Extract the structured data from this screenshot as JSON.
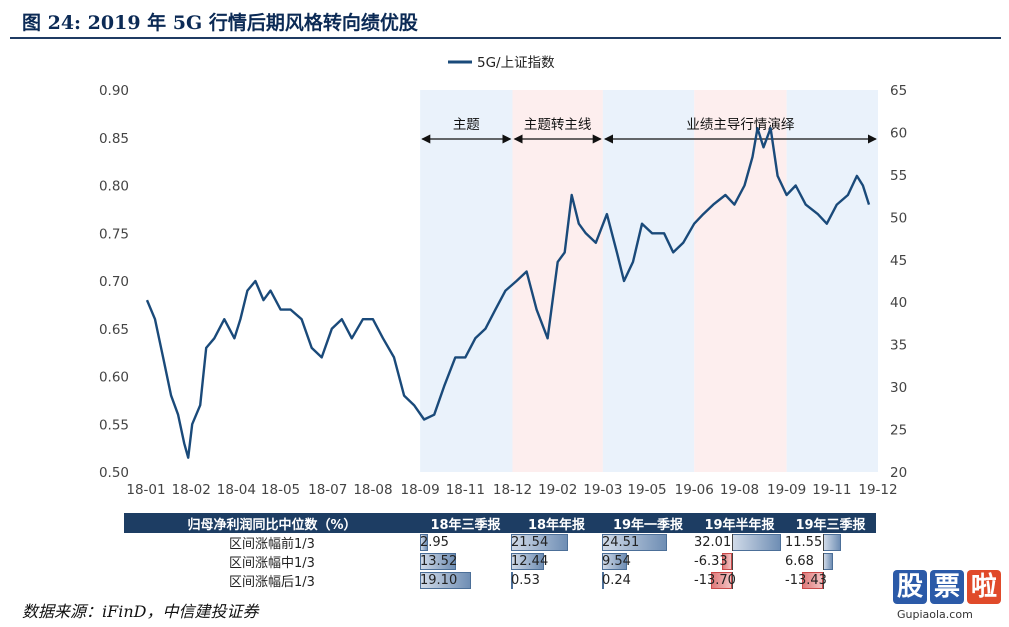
{
  "figure": {
    "title": "图 24: 2019 年 5G 行情后期风格转向绩优股",
    "source": "数据来源：iFinD，中信建投证券"
  },
  "chart_data": {
    "type": "line",
    "legend": [
      "5G/上证指数"
    ],
    "legend_position": "top-center",
    "series": [
      {
        "name": "5G/上证指数",
        "color": "#1a4a7a",
        "axis": "left",
        "x": [
          "2018-01-02",
          "2018-01-10",
          "2018-01-18",
          "2018-01-26",
          "2018-02-02",
          "2018-02-08",
          "2018-02-12",
          "2018-02-16",
          "2018-02-24",
          "2018-03-02",
          "2018-03-10",
          "2018-03-20",
          "2018-03-30",
          "2018-04-05",
          "2018-04-12",
          "2018-04-20",
          "2018-04-28",
          "2018-05-05",
          "2018-05-15",
          "2018-05-25",
          "2018-06-05",
          "2018-06-15",
          "2018-06-25",
          "2018-07-05",
          "2018-07-15",
          "2018-07-25",
          "2018-08-05",
          "2018-08-15",
          "2018-08-25",
          "2018-09-05",
          "2018-09-15",
          "2018-09-25",
          "2018-10-05",
          "2018-10-15",
          "2018-10-25",
          "2018-11-05",
          "2018-11-15",
          "2018-11-25",
          "2018-12-05",
          "2018-12-15",
          "2018-12-25",
          "2019-01-05",
          "2019-01-15",
          "2019-01-25",
          "2019-02-05",
          "2019-02-15",
          "2019-02-22",
          "2019-03-01",
          "2019-03-08",
          "2019-03-15",
          "2019-03-25",
          "2019-04-05",
          "2019-04-15",
          "2019-04-22",
          "2019-05-01",
          "2019-05-10",
          "2019-05-20",
          "2019-06-01",
          "2019-06-10",
          "2019-06-20",
          "2019-07-01",
          "2019-07-10",
          "2019-07-20",
          "2019-08-01",
          "2019-08-10",
          "2019-08-20",
          "2019-08-28",
          "2019-09-02",
          "2019-09-08",
          "2019-09-15",
          "2019-09-22",
          "2019-10-01",
          "2019-10-10",
          "2019-10-20",
          "2019-11-01",
          "2019-11-10",
          "2019-11-20",
          "2019-12-01",
          "2019-12-10",
          "2019-12-16",
          "2019-12-22"
        ],
        "y": [
          0.68,
          0.66,
          0.62,
          0.58,
          0.56,
          0.53,
          0.515,
          0.55,
          0.57,
          0.63,
          0.64,
          0.66,
          0.64,
          0.66,
          0.69,
          0.7,
          0.68,
          0.69,
          0.67,
          0.67,
          0.66,
          0.63,
          0.62,
          0.65,
          0.66,
          0.64,
          0.66,
          0.66,
          0.64,
          0.62,
          0.58,
          0.57,
          0.555,
          0.56,
          0.59,
          0.62,
          0.62,
          0.64,
          0.65,
          0.67,
          0.69,
          0.7,
          0.71,
          0.67,
          0.64,
          0.72,
          0.73,
          0.79,
          0.76,
          0.75,
          0.74,
          0.77,
          0.73,
          0.7,
          0.72,
          0.76,
          0.75,
          0.75,
          0.73,
          0.74,
          0.76,
          0.77,
          0.78,
          0.79,
          0.78,
          0.8,
          0.83,
          0.86,
          0.84,
          0.86,
          0.81,
          0.79,
          0.8,
          0.78,
          0.77,
          0.76,
          0.78,
          0.79,
          0.81,
          0.8,
          0.78
        ]
      }
    ],
    "x_axis": {
      "ticks": [
        "18-01",
        "18-02",
        "18-04",
        "18-05",
        "18-07",
        "18-08",
        "18-09",
        "18-11",
        "18-12",
        "19-02",
        "19-03",
        "19-05",
        "19-06",
        "19-08",
        "19-09",
        "19-11",
        "19-12"
      ],
      "tick_dates": [
        "2018-01-01",
        "2018-02-15",
        "2018-04-01",
        "2018-05-15",
        "2018-07-01",
        "2018-08-15",
        "2018-10-01",
        "2018-11-15",
        "2019-01-01",
        "2019-02-15",
        "2019-04-01",
        "2019-05-15",
        "2019-07-01",
        "2019-08-15",
        "2019-10-01",
        "2019-11-15",
        "2019-12-31"
      ]
    },
    "y_axis_left": {
      "ylim": [
        0.5,
        0.9
      ],
      "ticks": [
        "0.50",
        "0.55",
        "0.60",
        "0.65",
        "0.70",
        "0.75",
        "0.80",
        "0.85",
        "0.90"
      ]
    },
    "y_axis_right": {
      "ylim": [
        20,
        65
      ],
      "ticks": [
        "20",
        "25",
        "30",
        "35",
        "40",
        "45",
        "50",
        "55",
        "60",
        "65"
      ]
    },
    "bands": [
      {
        "start": "2018-10-01",
        "end": "2019-01-01",
        "color": "#eaf2fb"
      },
      {
        "start": "2019-01-01",
        "end": "2019-04-01",
        "color": "#fdeeee"
      },
      {
        "start": "2019-04-01",
        "end": "2019-07-01",
        "color": "#eaf2fb"
      },
      {
        "start": "2019-07-01",
        "end": "2019-10-01",
        "color": "#fdeeee"
      },
      {
        "start": "2019-10-01",
        "end": "2019-12-31",
        "color": "#eaf2fb"
      }
    ],
    "annotations": [
      {
        "text": "主题",
        "start": "2018-10-01",
        "end": "2019-01-01"
      },
      {
        "text": "主题转主线",
        "start": "2019-01-01",
        "end": "2019-04-01"
      },
      {
        "text": "业绩主导行情演绎",
        "start": "2019-04-01",
        "end": "2019-12-31"
      }
    ],
    "grid": false
  },
  "table": {
    "headers": [
      "归母净利润同比中位数（%）",
      "18年三季报",
      "18年年报",
      "19年一季报",
      "19年半年报",
      "19年三季报"
    ],
    "rows": [
      {
        "label": "区间涨幅前1/3",
        "values": [
          "2.95",
          "21.54",
          "24.51",
          "32.01",
          "11.55"
        ],
        "nums": [
          2.95,
          21.54,
          24.51,
          32.01,
          11.55
        ]
      },
      {
        "label": "区间涨幅中1/3",
        "values": [
          "13.52",
          "12.44",
          "9.54",
          "-6.33",
          "6.68"
        ],
        "nums": [
          13.52,
          12.44,
          9.54,
          -6.33,
          6.68
        ]
      },
      {
        "label": "区间涨幅后1/3",
        "values": [
          "19.10",
          "0.53",
          "0.24",
          "-13.70",
          "-13.43"
        ],
        "nums": [
          19.1,
          0.53,
          0.24,
          -13.7,
          -13.43
        ]
      }
    ]
  },
  "watermark": {
    "chars": [
      "股",
      "票",
      "啦"
    ],
    "url": "Gupiaola.com"
  }
}
